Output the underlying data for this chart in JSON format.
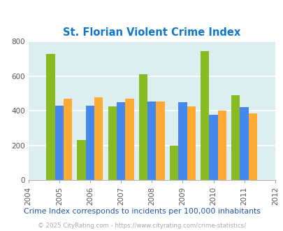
{
  "title": "St. Florian Violent Crime Index",
  "years": [
    2005,
    2006,
    2007,
    2008,
    2009,
    2010,
    2011
  ],
  "st_florian": [
    730,
    230,
    425,
    610,
    200,
    745,
    490
  ],
  "alabama": [
    430,
    428,
    450,
    455,
    450,
    378,
    422
  ],
  "national": [
    470,
    480,
    470,
    455,
    425,
    400,
    387
  ],
  "color_florian": "#88bb22",
  "color_alabama": "#4488ee",
  "color_national": "#ffaa33",
  "bg_color": "#ddeef0",
  "xlim": [
    2004,
    2012
  ],
  "ylim": [
    0,
    800
  ],
  "yticks": [
    0,
    200,
    400,
    600,
    800
  ],
  "subtitle": "Crime Index corresponds to incidents per 100,000 inhabitants",
  "footer": "© 2025 CityRating.com - https://www.cityrating.com/crime-statistics/",
  "title_color": "#1177cc",
  "subtitle_color": "#2255aa",
  "footer_color": "#aaaaaa",
  "bar_width": 0.28
}
